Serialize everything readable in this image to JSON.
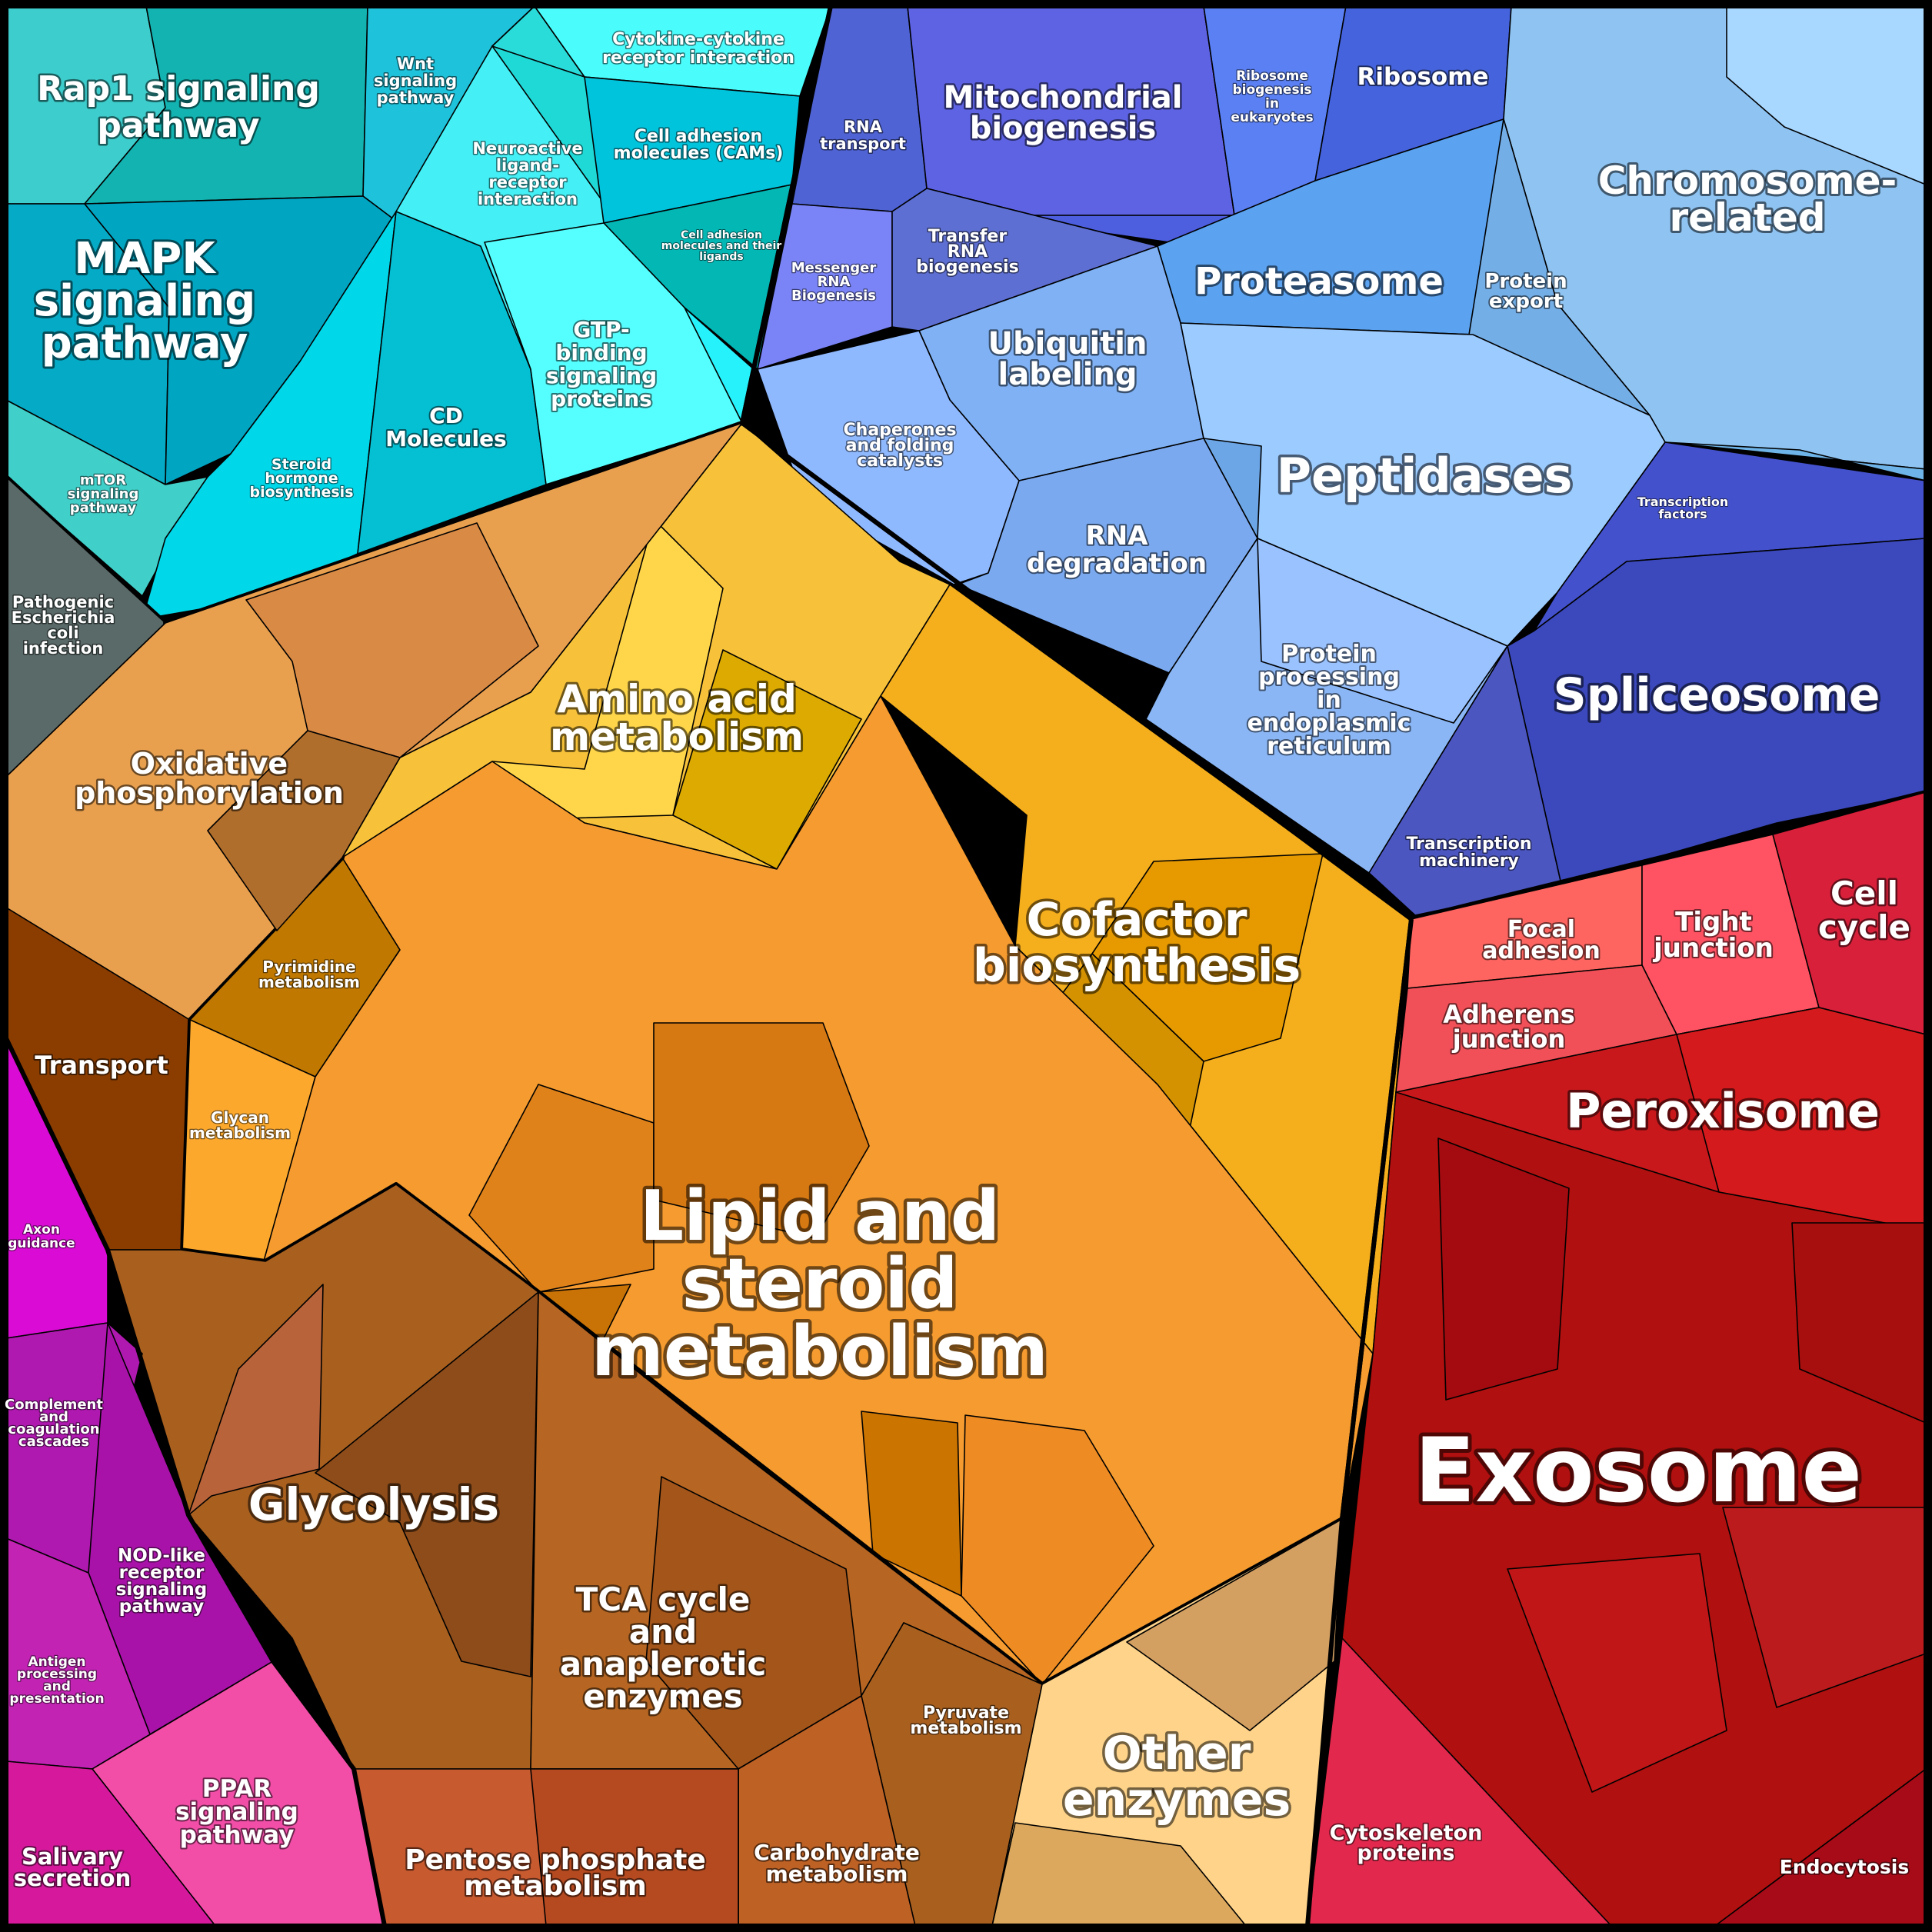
{
  "title": "",
  "colors": {
    "cyan_group": "#19c4d4",
    "blue_group": "#6a9ef0",
    "orange_group": "#f5a21e",
    "brown_group": "#a8581f",
    "red_group": "#b81418",
    "magenta_group": "#b918b4",
    "gray_group": "#5a6a68",
    "border": "#000000"
  },
  "labels": {
    "rap1": "Rap1 signaling pathway",
    "wnt": "Wnt signaling pathway",
    "cytokine": "Cytokine-cytokine receptor interaction",
    "neuroactive": "Neuroactive ligand-receptor interaction",
    "cams": "Cell adhesion molecules (CAMs)",
    "cell_adhesion_ligands": "Cell adhesion molecules and their ligands",
    "mapk": "MAPK signaling pathway",
    "gtp": "GTP-binding signaling proteins",
    "cd": "CD Molecules",
    "mtor": "mTOR signaling pathway",
    "steroid_hormone": "Steroid hormone biosynthesis",
    "pathogenic_ecoli": "Pathogenic Escherichia coli infection",
    "rna_transport": "RNA transport",
    "mito": "Mitochondrial biogenesis",
    "ribosome_biogenesis": "Ribosome biogenesis in eukaryotes",
    "ribosome": "Ribosome",
    "mrna_biogenesis": "Messenger RNA Biogenesis",
    "trna_biogenesis": "Transfer RNA biogenesis",
    "proteasome": "Proteasome",
    "protein_export": "Protein export",
    "chromosome": "Chromosome-related",
    "ubiquitin": "Ubiquitin labeling",
    "chaperones": "Chaperones and folding catalysts",
    "peptidases": "Peptidases",
    "rna_degradation": "RNA degradation",
    "transcription_factors": "Transcription factors",
    "protein_processing": "Protein processing in endoplasmic reticulum",
    "spliceosome": "Spliceosome",
    "transcription_machinery": "Transcription machinery",
    "amino_acid": "Amino acid metabolism",
    "oxphos": "Oxidative phosphorylation",
    "cofactor": "Cofactor biosynthesis",
    "pyrimidine": "Pyrimidine metabolism",
    "transport": "Transport",
    "glycan": "Glycan metabolism",
    "lipid": "Lipid and steroid metabolism",
    "focal_adhesion": "Focal adhesion",
    "tight_junction": "Tight junction",
    "cell_cycle": "Cell cycle",
    "adherens": "Adherens junction",
    "peroxisome": "Peroxisome",
    "exosome": "Exosome",
    "axon": "Axon guidance",
    "complement": "Complement and coagulation cascades",
    "nod": "NOD-like receptor signaling pathway",
    "antigen": "Antigen processing and presentation",
    "ppar": "PPAR signaling pathway",
    "salivary": "Salivary secretion",
    "glycolysis": "Glycolysis",
    "tca": "TCA cycle and anaplerotic enzymes",
    "pyruvate": "Pyruvate metabolism",
    "other_enzymes": "Other enzymes",
    "pentose": "Pentose phosphate metabolism",
    "carbohydrate": "Carbohydrate metabolism",
    "cytoskeleton": "Cytoskeleton proteins",
    "endocytosis": "Endocytosis"
  }
}
